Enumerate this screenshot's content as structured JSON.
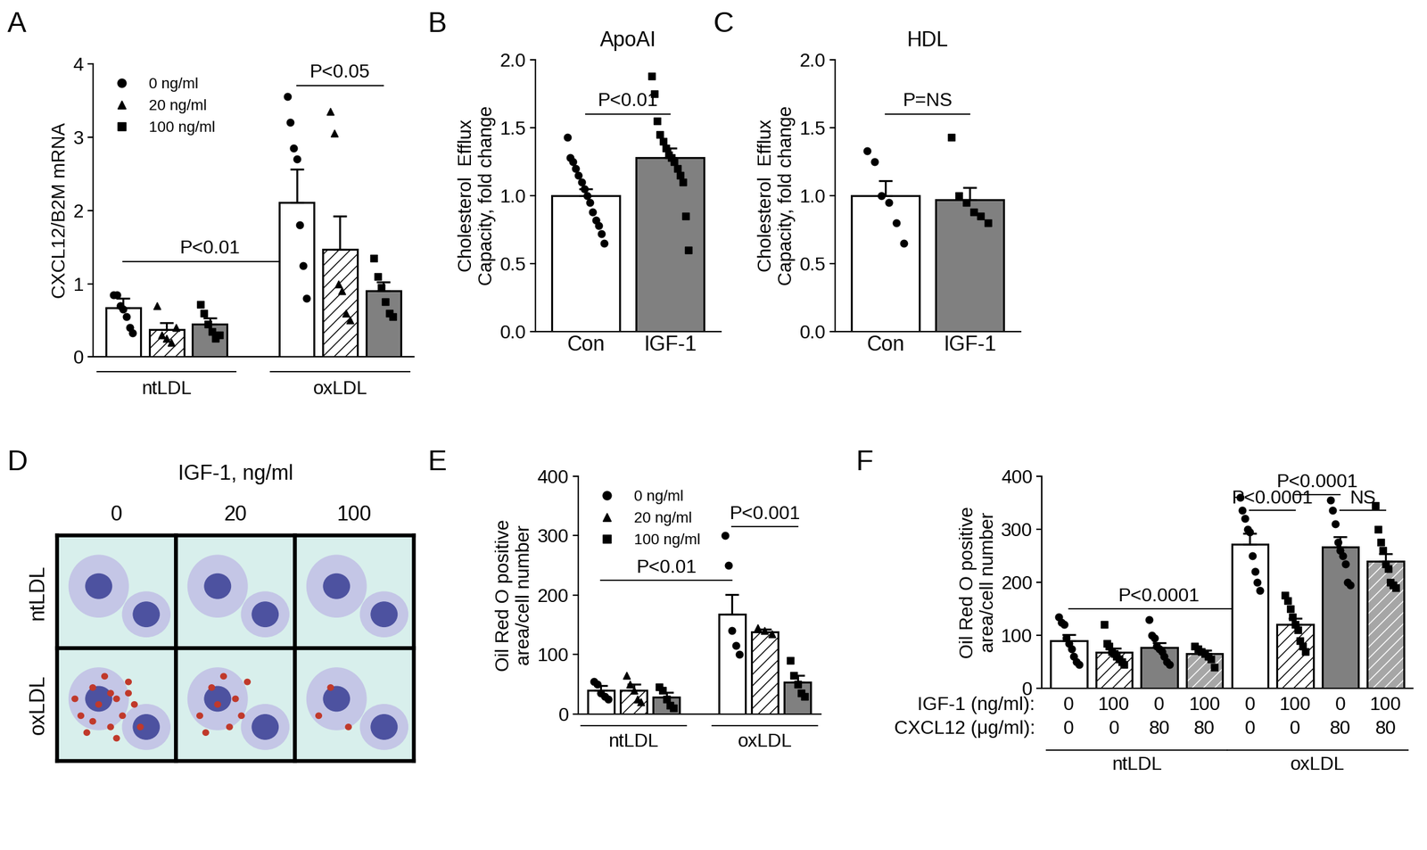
{
  "chart_data": [
    {
      "panel": "A",
      "type": "bar",
      "ylabel": "CXCL12/B2M mRNA",
      "ylim": [
        0,
        4
      ],
      "yticks": [
        0,
        1,
        2,
        3,
        4
      ],
      "categories": [
        "ntLDL",
        "oxLDL"
      ],
      "series": [
        {
          "name": "0 ng/ml",
          "marker": "circle",
          "color": "#ffffff",
          "values": [
            0.67,
            2.11
          ],
          "errors": [
            0.13,
            0.45
          ],
          "points": [
            [
              0.85,
              0.85,
              0.7,
              0.65,
              0.55,
              0.4,
              0.33
            ],
            [
              3.55,
              3.2,
              2.85,
              2.7,
              1.8,
              1.25,
              0.8
            ]
          ]
        },
        {
          "name": "20 ng/ml",
          "marker": "triangle",
          "color": "#ffffff",
          "values": [
            0.37,
            1.47
          ],
          "errors": [
            0.1,
            0.45
          ],
          "points": [
            [
              0.7,
              0.3,
              0.25,
              0.2,
              0.4
            ],
            [
              3.35,
              3.05,
              1.0,
              0.9,
              0.6,
              0.5
            ]
          ]
        },
        {
          "name": "100 ng/ml",
          "marker": "square",
          "color": "#808080",
          "values": [
            0.45,
            0.9
          ],
          "errors": [
            0.08,
            0.12
          ],
          "points": [
            [
              0.72,
              0.6,
              0.45,
              0.35,
              0.25,
              0.3
            ],
            [
              1.35,
              1.1,
              0.95,
              0.75,
              0.6,
              0.55
            ]
          ]
        }
      ],
      "legend": "upper left",
      "annotations": [
        {
          "text": "P<0.05",
          "from": [
            1,
            0
          ],
          "to": [
            1,
            2
          ],
          "y": 3.7
        },
        {
          "text": "P<0.01",
          "from": [
            0,
            0
          ],
          "to": [
            1,
            0
          ],
          "y": 1.3
        }
      ]
    },
    {
      "panel": "B",
      "type": "bar",
      "title": "ApoAI",
      "ylabel": "Cholesterol  Efflux\nCapacity, fold change",
      "ylim": [
        0,
        2
      ],
      "yticks": [
        {
          "value": 0,
          "label": "0.0"
        },
        0.5,
        {
          "value": 1,
          "label": "1.0"
        },
        1.5,
        {
          "value": 2,
          "label": "2.0"
        }
      ],
      "categories": [
        "Con",
        "IGF-1"
      ],
      "values": [
        1.0,
        1.28
      ],
      "errors": [
        0.05,
        0.07
      ],
      "points": [
        [
          1.43,
          1.28,
          1.25,
          1.2,
          1.15,
          1.1,
          1.05,
          1.0,
          0.95,
          0.88,
          0.82,
          0.78,
          0.72,
          0.65
        ],
        [
          1.88,
          1.75,
          1.55,
          1.45,
          1.4,
          1.35,
          1.3,
          1.28,
          1.25,
          1.2,
          1.15,
          1.1,
          0.85,
          0.6
        ]
      ],
      "colors": [
        "#ffffff",
        "#808080"
      ],
      "markers": [
        "circle",
        "square"
      ],
      "annotations": [
        {
          "text": "P<0.01",
          "from": 0,
          "to": 1,
          "y": 1.6
        }
      ]
    },
    {
      "panel": "C",
      "type": "bar",
      "title": "HDL",
      "ylabel": "Cholesterol  Efflux\nCapacity, fold change",
      "ylim": [
        0,
        2
      ],
      "yticks": [
        {
          "value": 0,
          "label": "0.0"
        },
        0.5,
        {
          "value": 1,
          "label": "1.0"
        },
        1.5,
        {
          "value": 2,
          "label": "2.0"
        }
      ],
      "categories": [
        "Con",
        "IGF-1"
      ],
      "values": [
        1.0,
        0.97
      ],
      "errors": [
        0.11,
        0.09
      ],
      "points": [
        [
          1.33,
          1.25,
          1.0,
          0.95,
          0.8,
          0.65
        ],
        [
          1.43,
          1.0,
          0.95,
          0.88,
          0.85,
          0.8
        ]
      ],
      "colors": [
        "#ffffff",
        "#808080"
      ],
      "markers": [
        "circle",
        "square"
      ],
      "annotations": [
        {
          "text": "P=NS",
          "from": 0,
          "to": 1,
          "y": 1.6
        }
      ]
    },
    {
      "panel": "D",
      "type": "image_grid",
      "title": "IGF-1, ng/ml",
      "columns": [
        "0",
        "20",
        "100"
      ],
      "rows": [
        "ntLDL",
        "oxLDL"
      ]
    },
    {
      "panel": "E",
      "type": "bar",
      "ylabel": "Oil Red O positive\narea/cell number",
      "ylim": [
        0,
        400
      ],
      "yticks": [
        0,
        100,
        200,
        300,
        400
      ],
      "categories": [
        "ntLDL",
        "oxLDL"
      ],
      "series": [
        {
          "name": "0 ng/ml",
          "marker": "circle",
          "color": "#ffffff",
          "values": [
            40,
            168
          ],
          "errors": [
            8,
            33
          ],
          "points": [
            [
              55,
              50,
              35,
              30,
              25
            ],
            [
              300,
              250,
              140,
              115,
              100
            ]
          ]
        },
        {
          "name": "20 ng/ml",
          "marker": "triangle",
          "color": "#ffffff",
          "values": [
            40,
            138
          ],
          "errors": [
            10,
            5
          ],
          "points": [
            [
              65,
              50,
              40,
              25,
              20
            ],
            [
              145,
              140,
              135
            ]
          ]
        },
        {
          "name": "100 ng/ml",
          "marker": "square",
          "color": "#808080",
          "values": [
            28,
            53
          ],
          "errors": [
            8,
            12
          ],
          "points": [
            [
              45,
              40,
              25,
              15,
              10
            ],
            [
              90,
              65,
              50,
              35,
              30
            ]
          ]
        }
      ],
      "legend": "upper left",
      "annotations": [
        {
          "text": "P<0.001",
          "from": [
            1,
            0
          ],
          "to": [
            1,
            2
          ],
          "y": 315
        },
        {
          "text": "P<0.01",
          "from": [
            0,
            0
          ],
          "to": [
            1,
            0
          ],
          "y": 225
        }
      ]
    },
    {
      "panel": "F",
      "type": "bar",
      "ylabel": "Oil Red O positive\narea/cell number",
      "ylim": [
        0,
        400
      ],
      "yticks": [
        0,
        100,
        200,
        300,
        400
      ],
      "categories": [
        null,
        null,
        null,
        null,
        null,
        null,
        null,
        null
      ],
      "values": [
        90,
        68,
        77,
        66,
        272,
        120,
        267,
        240
      ],
      "errors": [
        12,
        8,
        9,
        6,
        20,
        12,
        18,
        14
      ],
      "points": [
        [
          135,
          125,
          120,
          95,
          85,
          75,
          60,
          50,
          45
        ],
        [
          120,
          85,
          80,
          70,
          65,
          60,
          55,
          50,
          45
        ],
        [
          130,
          100,
          95,
          80,
          75,
          70,
          60,
          50,
          45
        ],
        [
          80,
          75,
          70,
          65,
          60,
          55,
          40
        ],
        [
          360,
          335,
          320,
          300,
          295,
          250,
          220,
          200,
          185
        ],
        [
          175,
          165,
          150,
          135,
          120,
          110,
          90,
          80,
          70
        ],
        [
          355,
          335,
          310,
          275,
          260,
          250,
          235,
          200,
          195
        ],
        [
          345,
          300,
          275,
          260,
          235,
          225,
          200,
          195,
          190
        ]
      ],
      "colors": [
        "#ffffff",
        "#ffffff",
        "#808080",
        "#a6a6a6",
        "#ffffff",
        "#ffffff",
        "#808080",
        "#a6a6a6"
      ],
      "markers": [
        "circle",
        "square",
        "circle",
        "square",
        "circle",
        "square",
        "circle",
        "square"
      ],
      "rows": [
        {
          "label": "IGF-1 (ng/ml):",
          "values": [
            0,
            100,
            0,
            100,
            0,
            100,
            0,
            100
          ]
        },
        {
          "label": "CXCL12 (μg/ml):",
          "values": [
            0,
            0,
            80,
            80,
            0,
            0,
            80,
            80
          ]
        }
      ],
      "groups": [
        {
          "label": "ntLDL",
          "from": 0,
          "to": 3
        },
        {
          "label": "oxLDL",
          "from": 4,
          "to": 7
        }
      ],
      "annotations": [
        {
          "text": "P<0.0001",
          "from": 0,
          "to": 4,
          "y": 150
        },
        {
          "text": "P<0.0001",
          "from": 4,
          "to": 5,
          "y": 335
        },
        {
          "text": "P<0.0001",
          "from": 5,
          "to": 6,
          "y": 365
        },
        {
          "text": "NS",
          "from": 6,
          "to": 7,
          "y": 335
        }
      ]
    }
  ]
}
